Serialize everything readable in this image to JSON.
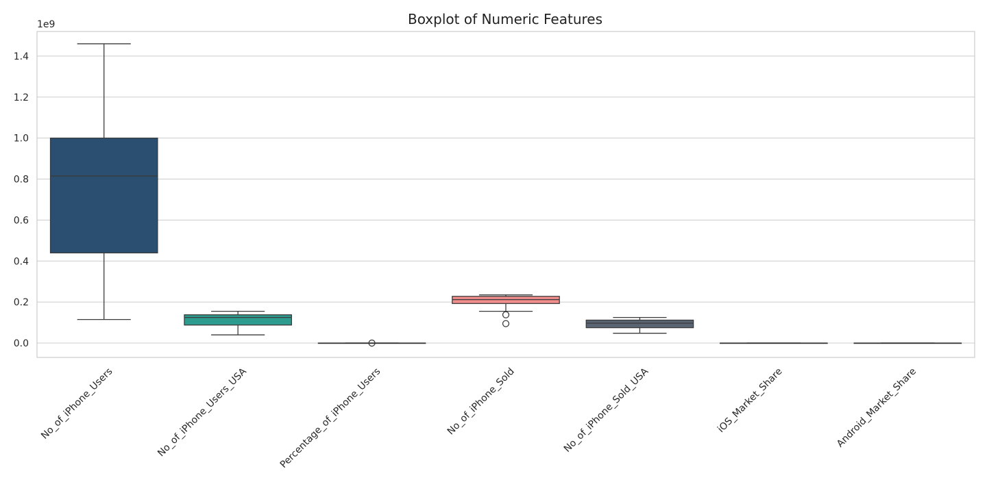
{
  "chart_data": {
    "type": "boxplot",
    "title": "Boxplot of Numeric Features",
    "xlabel": "",
    "ylabel": "",
    "y_offset_label": "1e9",
    "ylim": [
      -0.07,
      1.52
    ],
    "yticks": [
      0.0,
      0.2,
      0.4,
      0.6,
      0.8,
      1.0,
      1.2,
      1.4
    ],
    "ytick_labels": [
      "0.0",
      "0.2",
      "0.4",
      "0.6",
      "0.8",
      "1.0",
      "1.2",
      "1.4"
    ],
    "grid": true,
    "categories": [
      "No_of_iPhone_Users",
      "No_of_iPhone_Users_USA",
      "Percentage_of_iPhone_Users",
      "No_of_iPhone_Sold",
      "No_of_iPhone_Sold_USA",
      "iOS_Market_Share",
      "Android_Market_Share"
    ],
    "boxes": [
      {
        "whislo": 0.115,
        "q1": 0.44,
        "med": 0.815,
        "q3": 1.0,
        "whishi": 1.46,
        "fliers": [],
        "color": "#2b4f71"
      },
      {
        "whislo": 0.04,
        "q1": 0.088,
        "med": 0.125,
        "q3": 0.138,
        "whishi": 0.155,
        "fliers": [],
        "color": "#2e9b8f"
      },
      {
        "whislo": 0.0,
        "q1": 0.0,
        "med": 0.0,
        "q3": 0.0,
        "whishi": 0.0,
        "fliers": [
          0.0
        ],
        "color": "#9ad08e"
      },
      {
        "whislo": 0.155,
        "q1": 0.193,
        "med": 0.212,
        "q3": 0.228,
        "whishi": 0.235,
        "fliers": [
          0.138,
          0.095
        ],
        "color": "#f28e8c"
      },
      {
        "whislo": 0.048,
        "q1": 0.075,
        "med": 0.097,
        "q3": 0.112,
        "whishi": 0.125,
        "fliers": [],
        "color": "#5a6573"
      },
      {
        "whislo": 0.0,
        "q1": 0.0,
        "med": 0.0,
        "q3": 0.0,
        "whishi": 0.0,
        "fliers": [],
        "color": "#f0c94d"
      },
      {
        "whislo": 0.0,
        "q1": 0.0,
        "med": 0.0,
        "q3": 0.0,
        "whishi": 0.0,
        "fliers": [],
        "color": "#8d6aa8"
      }
    ]
  }
}
